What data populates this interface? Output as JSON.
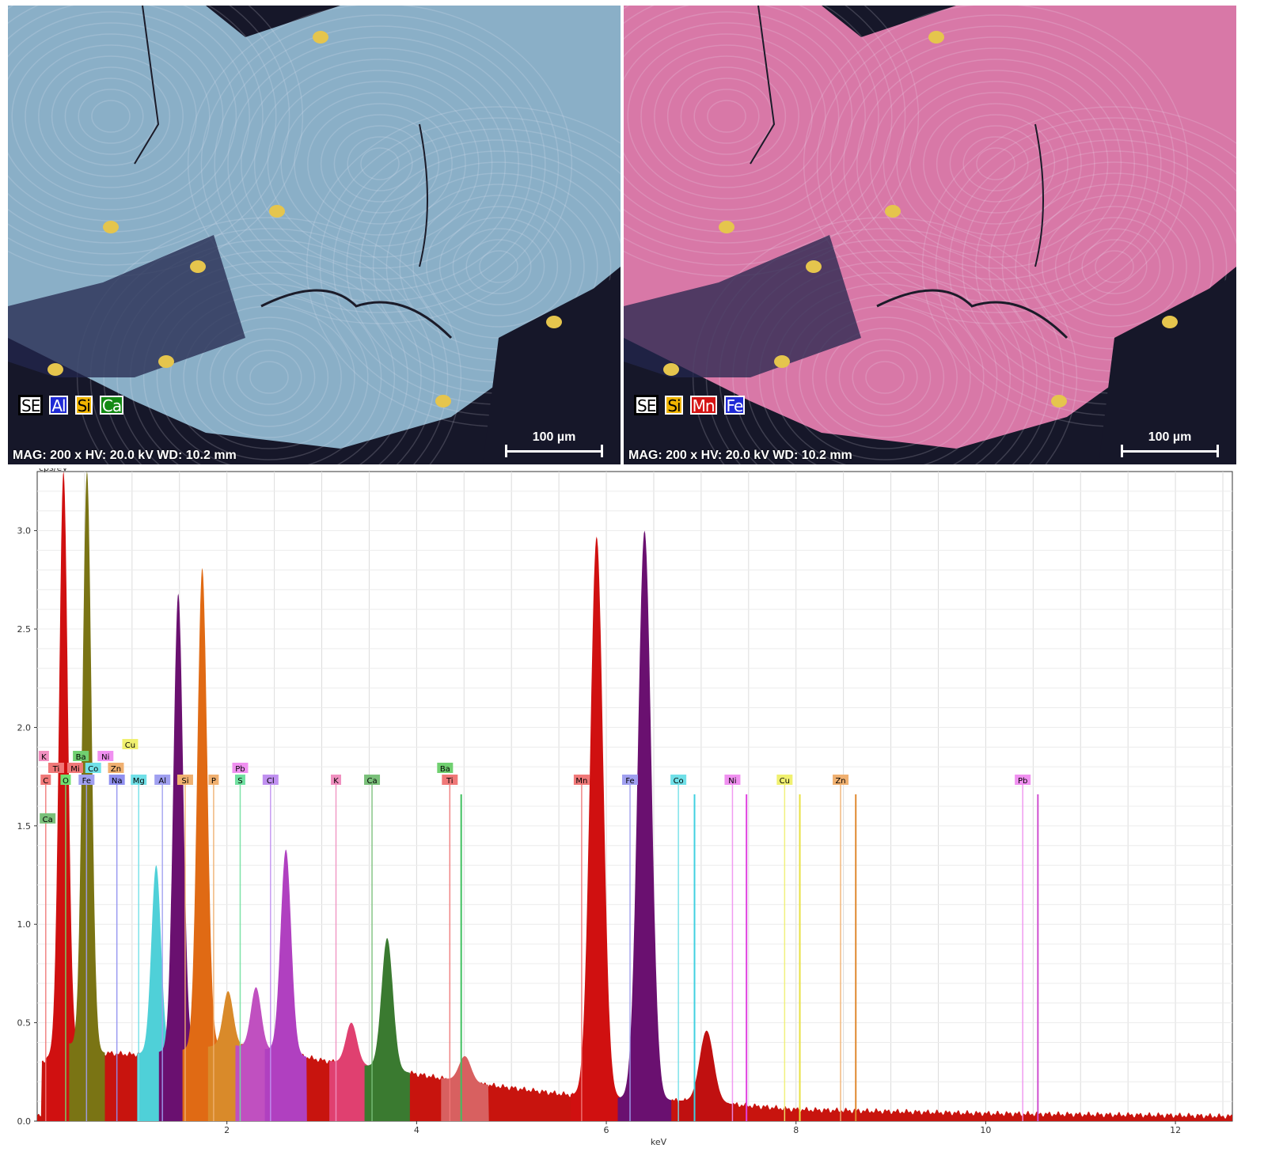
{
  "maps": [
    {
      "legend": [
        {
          "label": "SE",
          "color": "#ffffff"
        },
        {
          "label": "Al",
          "color": "#1f2ad6"
        },
        {
          "label": "Si",
          "color": "#f0b400"
        },
        {
          "label": "Ca",
          "color": "#138a13"
        }
      ],
      "scale_label": "100 µm",
      "meta": "MAG: 200 x    HV: 20.0 kV    WD: 10.2 mm",
      "fill_color": "#8fb9c4"
    },
    {
      "legend": [
        {
          "label": "SE",
          "color": "#ffffff"
        },
        {
          "label": "Si",
          "color": "#f0b400"
        },
        {
          "label": "Mn",
          "color": "#d41414"
        },
        {
          "label": "Fe",
          "color": "#1f2ad6"
        }
      ],
      "scale_label": "100 µm",
      "meta": "MAG: 200 x    HV: 20.0 kV    WD: 10.2 mm",
      "fill_color": "#e87aa0"
    }
  ],
  "chart_data": {
    "type": "area",
    "ylabel": "cps/eV",
    "xlabel": "keV",
    "xlim": [
      0.0,
      12.6
    ],
    "ylim": [
      0.0,
      3.3
    ],
    "xticks": [
      2,
      4,
      6,
      8,
      10,
      12
    ],
    "yticks": [
      0.0,
      0.5,
      1.0,
      1.5,
      2.0,
      2.5,
      3.0
    ],
    "grid": true,
    "spectrum_color": "#c8140e",
    "background": [
      [
        0.05,
        0.3
      ],
      [
        0.3,
        0.4
      ],
      [
        0.6,
        0.35
      ],
      [
        1.0,
        0.34
      ],
      [
        1.5,
        0.36
      ],
      [
        2.0,
        0.39
      ],
      [
        2.5,
        0.36
      ],
      [
        3.0,
        0.31
      ],
      [
        3.5,
        0.28
      ],
      [
        4.0,
        0.24
      ],
      [
        4.5,
        0.2
      ],
      [
        5.0,
        0.17
      ],
      [
        5.5,
        0.14
      ],
      [
        6.0,
        0.12
      ],
      [
        6.5,
        0.11
      ],
      [
        7.0,
        0.1
      ],
      [
        7.5,
        0.08
      ],
      [
        8.0,
        0.06
      ],
      [
        9.0,
        0.05
      ],
      [
        10.0,
        0.04
      ],
      [
        11.0,
        0.035
      ],
      [
        12.0,
        0.03
      ],
      [
        12.6,
        0.025
      ]
    ],
    "peaks": [
      {
        "element": "C",
        "x": 0.277,
        "y": 3.3,
        "color": "#d01010"
      },
      {
        "element": "O",
        "x": 0.525,
        "y": 3.3,
        "color": "#7a7414"
      },
      {
        "element": "Mg",
        "x": 1.254,
        "y": 1.3,
        "color": "#4fd0d8"
      },
      {
        "element": "Al",
        "x": 1.487,
        "y": 2.68,
        "color": "#6a1070"
      },
      {
        "element": "Si",
        "x": 1.74,
        "y": 2.81,
        "color": "#e06a14"
      },
      {
        "element": "P",
        "x": 2.013,
        "y": 0.66,
        "color": "#d98a2a"
      },
      {
        "element": "S",
        "x": 2.307,
        "y": 0.68,
        "color": "#c050c0"
      },
      {
        "element": "Cl",
        "x": 2.622,
        "y": 1.38,
        "color": "#b040c0"
      },
      {
        "element": "K",
        "x": 3.313,
        "y": 0.5,
        "color": "#e04070"
      },
      {
        "element": "Ca",
        "x": 3.69,
        "y": 0.93,
        "color": "#3a7a30"
      },
      {
        "element": "Ti",
        "x": 4.51,
        "y": 0.33,
        "color": "#d86060"
      },
      {
        "element": "Mn",
        "x": 5.898,
        "y": 2.97,
        "color": "#d01010"
      },
      {
        "element": "Fe",
        "x": 6.403,
        "y": 3.0,
        "color": "#6a1070"
      },
      {
        "element": "Fe Kb",
        "x": 7.058,
        "y": 0.46,
        "color": "#c01010"
      }
    ],
    "marker_lines": [
      {
        "element": "Co",
        "x": 6.93,
        "color": "#40d0e0"
      },
      {
        "element": "Ni",
        "x": 7.478,
        "color": "#e040e0"
      },
      {
        "element": "Cu",
        "x": 8.04,
        "color": "#e8e040"
      },
      {
        "element": "Zn",
        "x": 8.63,
        "color": "#e08a30"
      },
      {
        "element": "Pb",
        "x": 10.55,
        "color": "#d050d0"
      },
      {
        "element": "Ba",
        "x": 4.47,
        "color": "#40c060"
      }
    ],
    "element_labels": [
      {
        "label": "K",
        "x": 0.07,
        "row": 3,
        "color": "#f090c0"
      },
      {
        "label": "Ti",
        "x": 0.2,
        "row": 2,
        "color": "#f07878"
      },
      {
        "label": "C",
        "x": 0.09,
        "row": 1,
        "color": "#f07878"
      },
      {
        "label": "Ca",
        "x": 0.11,
        "row": 0,
        "color": "#7ac07a"
      },
      {
        "label": "Ba",
        "x": 0.46,
        "row": 3,
        "color": "#70d070"
      },
      {
        "label": "Ni",
        "x": 0.72,
        "row": 3,
        "color": "#f090f0"
      },
      {
        "label": "Cu",
        "x": 0.98,
        "row": 4,
        "color": "#f0f070"
      },
      {
        "label": "Mi",
        "x": 0.4,
        "row": 2,
        "color": "#f07878"
      },
      {
        "label": "Co",
        "x": 0.59,
        "row": 2,
        "color": "#70e0e8"
      },
      {
        "label": "Zn",
        "x": 0.83,
        "row": 2,
        "color": "#f0b070"
      },
      {
        "label": "O",
        "x": 0.3,
        "row": 1,
        "color": "#70e070"
      },
      {
        "label": "Fe",
        "x": 0.52,
        "row": 1,
        "color": "#a0a0f0"
      },
      {
        "label": "Na",
        "x": 0.84,
        "row": 1,
        "color": "#9090f0"
      },
      {
        "label": "Mg",
        "x": 1.07,
        "row": 1,
        "color": "#70e0e8"
      },
      {
        "label": "Al",
        "x": 1.32,
        "row": 1,
        "color": "#a0a0f0"
      },
      {
        "label": "Si",
        "x": 1.56,
        "row": 1,
        "color": "#f0b070"
      },
      {
        "label": "P",
        "x": 1.86,
        "row": 1,
        "color": "#f0b070"
      },
      {
        "label": "S",
        "x": 2.14,
        "row": 1,
        "color": "#70e0a0"
      },
      {
        "label": "Pb",
        "x": 2.14,
        "row": 2,
        "color": "#f090f0"
      },
      {
        "label": "Cl",
        "x": 2.46,
        "row": 1,
        "color": "#c090f0"
      },
      {
        "label": "K",
        "x": 3.15,
        "row": 1,
        "color": "#f090c0"
      },
      {
        "label": "Ca",
        "x": 3.53,
        "row": 1,
        "color": "#7ac07a"
      },
      {
        "label": "Ba",
        "x": 4.3,
        "row": 2,
        "color": "#70d070"
      },
      {
        "label": "Ti",
        "x": 4.35,
        "row": 1,
        "color": "#f07878"
      },
      {
        "label": "Mn",
        "x": 5.74,
        "row": 1,
        "color": "#f07878"
      },
      {
        "label": "Fe",
        "x": 6.25,
        "row": 1,
        "color": "#a0a0f0"
      },
      {
        "label": "Co",
        "x": 6.76,
        "row": 1,
        "color": "#70e0e8"
      },
      {
        "label": "Ni",
        "x": 7.33,
        "row": 1,
        "color": "#f090f0"
      },
      {
        "label": "Cu",
        "x": 7.88,
        "row": 1,
        "color": "#f0f070"
      },
      {
        "label": "Zn",
        "x": 8.47,
        "row": 1,
        "color": "#f0b070"
      },
      {
        "label": "Pb",
        "x": 10.39,
        "row": 1,
        "color": "#f090f0"
      }
    ]
  }
}
